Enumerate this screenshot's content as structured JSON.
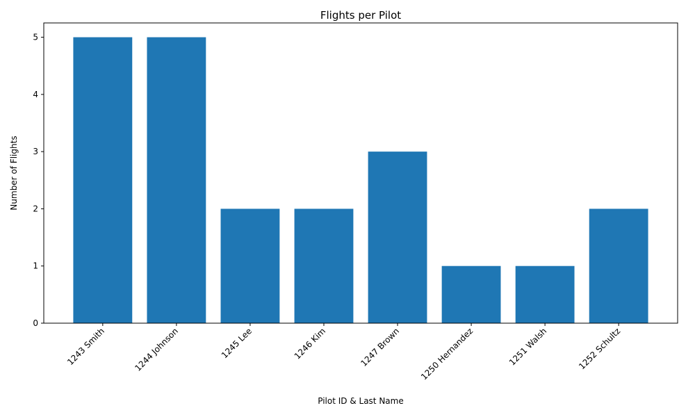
{
  "chart_data": {
    "type": "bar",
    "title": "Flights per Pilot",
    "xlabel": "Pilot ID & Last Name",
    "ylabel": "Number of Flights",
    "categories": [
      "1243 Smith",
      "1244 Johnson",
      "1245 Lee",
      "1246 Kim",
      "1247 Brown",
      "1250 Hernandez",
      "1251 Walsh",
      "1252 Schultz"
    ],
    "values": [
      5,
      5,
      2,
      2,
      3,
      1,
      1,
      2
    ],
    "ylim": [
      0,
      5.25
    ],
    "yticks": [
      0,
      1,
      2,
      3,
      4,
      5
    ],
    "bar_color": "#1f77b4",
    "grid": false,
    "legend": "none"
  }
}
